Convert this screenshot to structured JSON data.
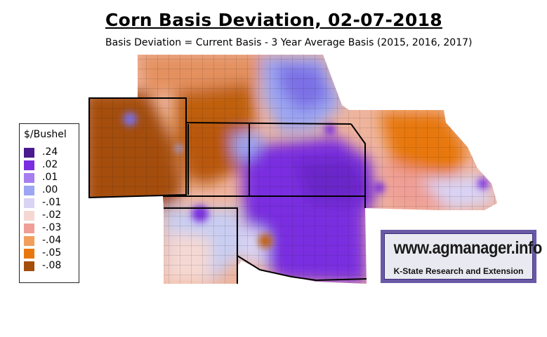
{
  "title": "Corn Basis Deviation, 02-07-2018",
  "subtitle": "Basis Deviation = Current Basis - 3 Year Average Basis (2015, 2016, 2017)",
  "legend": {
    "title": "$/Bushel",
    "items": [
      {
        "label": ".24",
        "color": "#4b1a8e"
      },
      {
        "label": ".02",
        "color": "#7a2ee0"
      },
      {
        "label": ".01",
        "color": "#a77ef0"
      },
      {
        "label": ".00",
        "color": "#9ca6f2"
      },
      {
        "label": "-.01",
        "color": "#d9d3f4"
      },
      {
        "label": "-.02",
        "color": "#f5d8d2"
      },
      {
        "label": "-.03",
        "color": "#ef9f95"
      },
      {
        "label": "-.04",
        "color": "#f0a05c"
      },
      {
        "label": "-.05",
        "color": "#e8780e"
      },
      {
        "label": "-.08",
        "color": "#a44e0c"
      }
    ]
  },
  "logo": {
    "url_text": "www.agmanager.info",
    "org_text": "K-State Research and Extension",
    "frame_color": "#6a5aa6"
  }
}
